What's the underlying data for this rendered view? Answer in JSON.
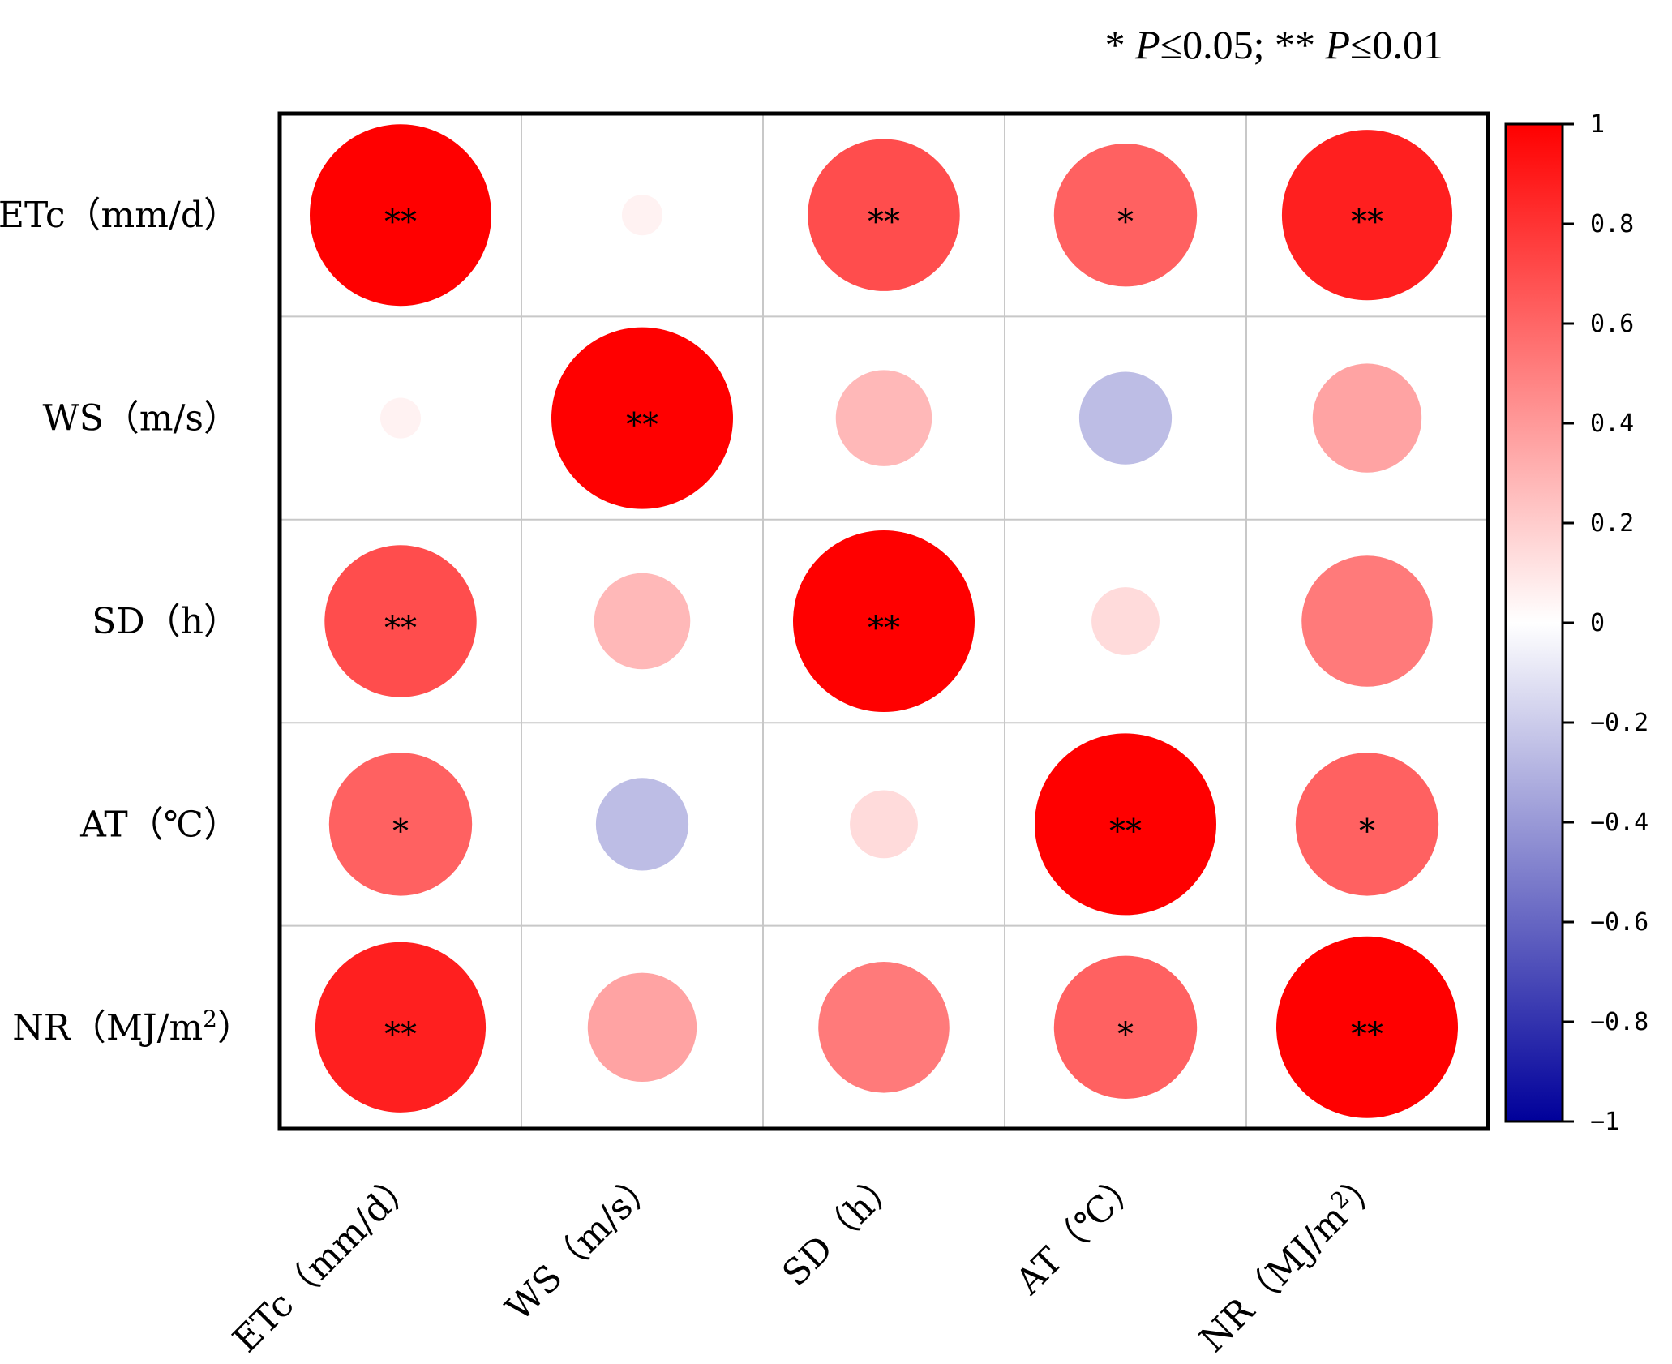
{
  "chart_data": {
    "type": "heatmap",
    "subtype": "correlation-circles",
    "note_prefix": "* ",
    "note_p1": "P",
    "note_mid1": "≤0.05; ** ",
    "note_p2": "P",
    "note_end": "≤0.01",
    "row_labels": [
      {
        "base": "ETc（mm/d）",
        "sup": ""
      },
      {
        "base": "WS（m/s）",
        "sup": ""
      },
      {
        "base": "SD（h）",
        "sup": ""
      },
      {
        "base": "AT（℃）",
        "sup": ""
      },
      {
        "base": "NR（MJ/m",
        "sup": "2",
        "close": "）"
      }
    ],
    "col_labels": [
      {
        "base": "ETc（mm/d）",
        "sup": ""
      },
      {
        "base": "WS（m/s）",
        "sup": ""
      },
      {
        "base": "SD（h）",
        "sup": ""
      },
      {
        "base": "AT（℃）",
        "sup": ""
      },
      {
        "base": "NR（MJ/m",
        "sup": "2",
        "close": "）"
      }
    ],
    "values": [
      [
        1.0,
        0.05,
        0.7,
        0.62,
        0.88
      ],
      [
        0.05,
        1.0,
        0.28,
        -0.26,
        0.36
      ],
      [
        0.7,
        0.28,
        1.0,
        0.14,
        0.52
      ],
      [
        0.62,
        -0.26,
        0.14,
        1.0,
        0.62
      ],
      [
        0.88,
        0.36,
        0.52,
        0.62,
        1.0
      ]
    ],
    "significance": [
      [
        "**",
        "",
        "**",
        "*",
        "**"
      ],
      [
        "",
        "**",
        "",
        "",
        ""
      ],
      [
        "**",
        "",
        "**",
        "",
        ""
      ],
      [
        "*",
        "",
        "",
        "**",
        "*"
      ],
      [
        "**",
        "",
        "",
        "*",
        "**"
      ]
    ],
    "colorbar": {
      "min": -1,
      "max": 1,
      "ticks": [
        "1",
        "0.8",
        "0.6",
        "0.4",
        "0.2",
        "0",
        "−0.2",
        "−0.4",
        "−0.6",
        "−0.8",
        "−1"
      ],
      "tick_values": [
        1,
        0.8,
        0.6,
        0.4,
        0.2,
        0,
        -0.2,
        -0.4,
        -0.6,
        -0.8,
        -1
      ],
      "color_max": "#ff0000",
      "color_mid": "#ffffff",
      "color_min": "#00009a"
    },
    "grid": true
  }
}
